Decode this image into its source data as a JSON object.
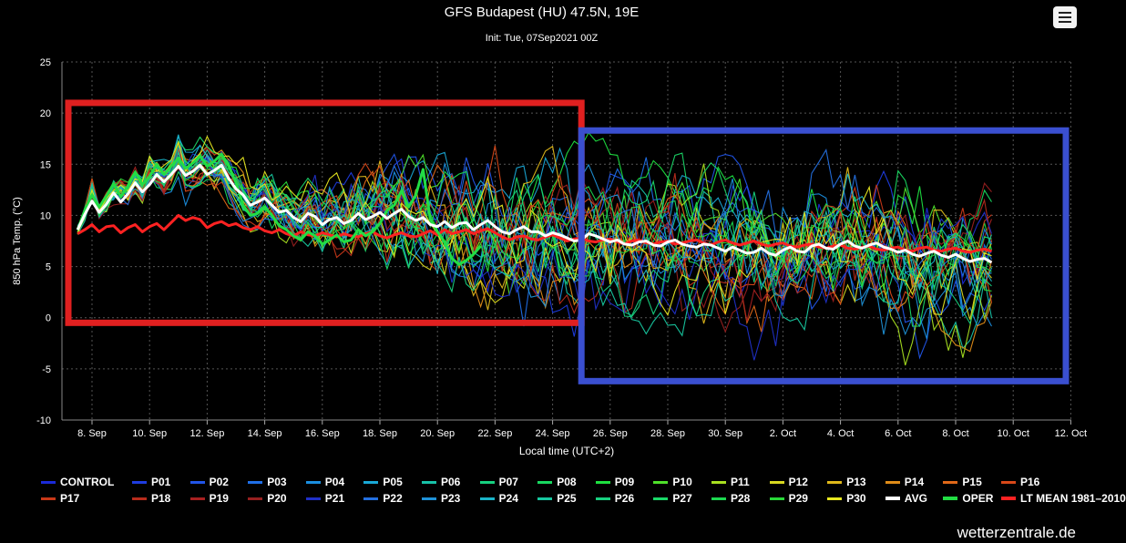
{
  "header": {
    "title": "GFS Budapest (HU) 47.5N, 19E",
    "subtitle": "Init: Tue, 07Sep2021 00Z"
  },
  "menu": {
    "icon": "hamburger-menu-icon"
  },
  "watermark": "wetterzentrale.de",
  "colors": {
    "background": "#000000",
    "avg": "#ffffff",
    "oper": "#22dd44",
    "lt_mean": "#ff2222",
    "highlight_past": "#e02020",
    "highlight_future": "#3a4fd0"
  },
  "chart_data": {
    "type": "line",
    "title": "GFS Budapest (HU) 47.5N, 19E",
    "subtitle": "Init: Tue, 07Sep2021 00Z",
    "xlabel": "Local time (UTC+2)",
    "ylabel": "850 hPa Temp. (°C)",
    "ylim": [
      -10,
      25
    ],
    "yticks": [
      25,
      20,
      15,
      10,
      5,
      0,
      -5,
      -10
    ],
    "x_start": "7. Sep 12:00",
    "x_step_hours": 6,
    "xtick_labels": [
      "8. Sep",
      "10. Sep",
      "12. Sep",
      "14. Sep",
      "16. Sep",
      "18. Sep",
      "20. Sep",
      "22. Sep",
      "24. Sep",
      "26. Sep",
      "28. Sep",
      "30. Sep",
      "2. Oct",
      "4. Oct",
      "6. Oct",
      "8. Oct",
      "10. Oct",
      "12. Oct"
    ],
    "grid": true,
    "legend_position": "bottom",
    "legend": [
      "CONTROL",
      "P01",
      "P02",
      "P03",
      "P04",
      "P05",
      "P06",
      "P07",
      "P08",
      "P09",
      "P10",
      "P11",
      "P12",
      "P13",
      "P14",
      "P15",
      "P16",
      "P17",
      "P18",
      "P19",
      "P20",
      "P21",
      "P22",
      "P23",
      "P24",
      "P25",
      "P26",
      "P27",
      "P28",
      "P29",
      "P30",
      "AVG",
      "OPER",
      "LT MEAN 1981–2010"
    ],
    "member_colors": [
      "#1a2ad8",
      "#1e3ce0",
      "#2155e8",
      "#1f6fe8",
      "#1a8ee0",
      "#19a8d6",
      "#17c2a8",
      "#16d080",
      "#18d860",
      "#1ee040",
      "#4ee02a",
      "#a8e020",
      "#d8d820",
      "#e0b81a",
      "#e08c18",
      "#e06818",
      "#d84818",
      "#c83818",
      "#b82c1c",
      "#a82020",
      "#982020",
      "#2030c8",
      "#2470e0",
      "#1f92d8",
      "#1ab4c8",
      "#17c8a0",
      "#18d080",
      "#1ad868",
      "#1cd850",
      "#28d838",
      "#e8e820"
    ],
    "series": [
      {
        "name": "AVG",
        "values": [
          8.6,
          10.1,
          11.4,
          10.3,
          11.1,
          12.2,
          11.3,
          12.1,
          13.2,
          12.3,
          13.0,
          14.0,
          13.3,
          14.0,
          14.8,
          13.9,
          14.3,
          14.9,
          14.0,
          14.4,
          14.9,
          13.6,
          12.6,
          12.0,
          11.0,
          11.3,
          11.7,
          11.0,
          10.3,
          10.5,
          9.8,
          9.4,
          10.2,
          9.9,
          9.1,
          9.6,
          9.8,
          9.2,
          9.5,
          10.2,
          9.6,
          9.9,
          10.3,
          9.7,
          10.2,
          10.6,
          9.9,
          9.5,
          9.8,
          9.1,
          8.9,
          9.4,
          8.8,
          9.2,
          9.3,
          8.6,
          9.1,
          9.5,
          8.9,
          8.4,
          8.2,
          8.6,
          8.9,
          8.4,
          8.4,
          8.0,
          8.3,
          8.1,
          7.8,
          7.5,
          7.6,
          8.2,
          8.0,
          7.7,
          7.4,
          7.6,
          7.2,
          7.1,
          7.4,
          7.5,
          7.1,
          7.0,
          7.4,
          7.6,
          7.2,
          7.0,
          6.9,
          7.2,
          7.1,
          6.8,
          6.5,
          6.9,
          6.6,
          6.3,
          6.4,
          6.8,
          6.3,
          6.1,
          6.6,
          6.9,
          6.5,
          6.4,
          7.0,
          7.2,
          6.8,
          6.7,
          7.2,
          7.5,
          7.0,
          6.8,
          7.1,
          7.3,
          6.9,
          6.7,
          6.4,
          6.6,
          6.2,
          6.0,
          6.3,
          6.5,
          6.1,
          5.9,
          6.2,
          5.8,
          5.5,
          5.7,
          5.8,
          5.4
        ]
      },
      {
        "name": "OPER",
        "values": [
          8.6,
          10.5,
          12.0,
          10.8,
          11.9,
          13.1,
          11.8,
          12.9,
          14.2,
          13.0,
          13.8,
          15.0,
          14.0,
          14.8,
          15.6,
          14.6,
          15.1,
          15.8,
          14.8,
          15.3,
          16.0,
          14.8,
          13.2,
          11.0,
          10.0,
          10.2,
          10.8,
          10.0,
          9.0,
          8.6,
          8.0,
          7.6,
          8.4,
          8.0,
          7.2,
          7.6,
          8.1,
          7.4,
          7.6,
          8.6,
          8.0,
          8.4,
          9.2,
          10.5,
          11.0,
          12.4,
          10.8,
          12.0,
          14.5,
          9.6,
          8.4,
          7.4,
          5.8,
          5.2,
          5.6,
          6.2,
          7.0
        ]
      },
      {
        "name": "LT MEAN 1981–2010",
        "values": [
          8.2,
          8.6,
          9.1,
          8.4,
          8.9,
          9.0,
          8.3,
          8.8,
          9.1,
          8.4,
          8.9,
          9.2,
          8.6,
          9.3,
          10.0,
          9.5,
          9.8,
          9.6,
          8.8,
          9.2,
          9.4,
          9.0,
          9.2,
          8.8,
          8.6,
          8.9,
          8.5,
          8.3,
          8.6,
          8.2,
          8.0,
          8.4,
          8.1,
          8.0,
          8.3,
          8.1,
          7.9,
          8.2,
          8.0,
          7.9,
          8.2,
          8.4,
          8.0,
          7.8,
          8.1,
          8.3,
          8.0,
          7.9,
          8.2,
          8.5,
          8.1,
          8.6,
          8.2,
          8.4,
          8.6,
          8.2,
          8.5,
          8.7,
          8.3,
          7.9,
          7.6,
          7.9,
          8.0,
          7.7,
          7.6,
          7.9,
          8.1,
          7.8,
          7.5,
          7.7,
          7.8,
          7.5,
          7.4,
          7.6,
          7.7,
          7.4,
          7.2,
          7.5,
          7.6,
          7.3,
          7.2,
          7.4,
          7.5,
          7.2,
          7.3,
          7.5,
          7.6,
          7.3,
          7.1,
          7.4,
          7.6,
          7.3,
          7.1,
          7.3,
          7.5,
          7.2,
          7.0,
          7.2,
          7.3,
          7.0,
          6.9,
          7.1,
          7.2,
          6.9,
          6.8,
          7.0,
          7.1,
          6.8,
          6.7,
          6.9,
          7.0,
          6.7,
          6.6,
          6.8,
          6.9,
          6.6,
          6.5,
          6.8,
          6.9,
          6.6,
          6.5,
          6.7,
          6.8,
          6.5,
          6.4,
          6.6,
          6.7,
          6.5
        ]
      }
    ],
    "annotations": [
      {
        "type": "box",
        "color": "#e02020",
        "from": "7. Sep 12:00",
        "to": "25. Sep",
        "ymin": -0.5,
        "ymax": 21.0
      },
      {
        "type": "box",
        "color": "#3a4fd0",
        "from": "25. Sep",
        "to": "12. Oct",
        "ymin": -6.2,
        "ymax": 18.3
      }
    ]
  }
}
